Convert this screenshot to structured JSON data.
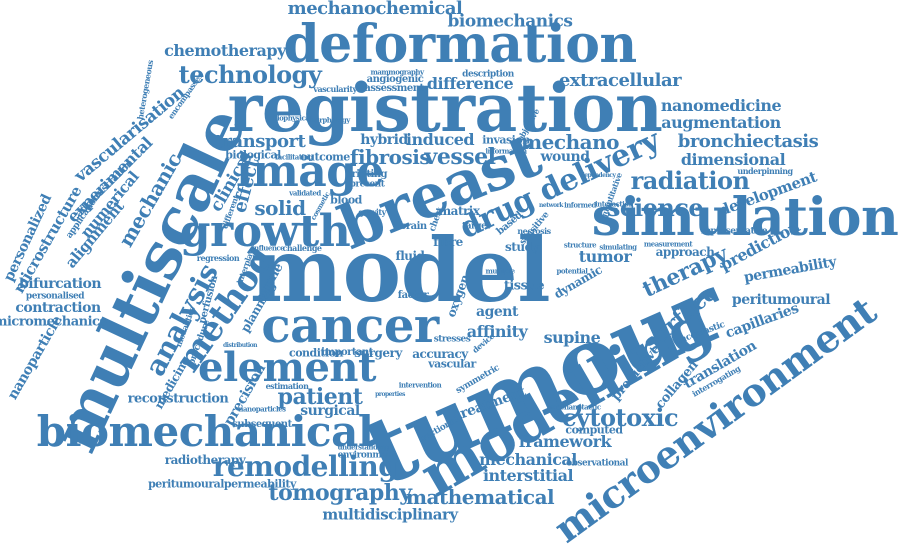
{
  "word_color": "#3f7fb5",
  "words": {
    "tumour": "tumour",
    "model": "model",
    "registration": "registration",
    "multiscale": "multiscale",
    "breast": "breast",
    "modelling": "modelling",
    "simulation": "simulation",
    "deformation": "deformation",
    "cancer": "cancer",
    "biomechanical": "biomechanical",
    "microenvironment": "microenvironment",
    "image": "image",
    "growth": "growth",
    "element": "element",
    "drug_delivery": "drug delivery",
    "method": "method",
    "analysis": "analysis",
    "remodelling": "remodelling",
    "radiation": "radiation",
    "science": "science",
    "tomography": "tomography",
    "mathematical": "mathematical",
    "cytotoxic": "cytotoxic",
    "technology": "technology",
    "therapy": "therapy",
    "surface": "surface",
    "patient": "patient",
    "vessel": "vessel",
    "fibrosis": "fibrosis",
    "mechano": "mechano",
    "transport": "transport",
    "induced": "induced",
    "solid": "solid",
    "effect": "effect",
    "clinical": "clinical",
    "mechanic": "mechanic",
    "mechanochemical": "mechanochemical",
    "biomechanics": "biomechanics",
    "chemotherapy": "chemotherapy",
    "difference": "difference",
    "extracellular": "extracellular",
    "nanomedicine": "nanomedicine",
    "augmentation": "augmentation",
    "bronchiectasis": "bronchiectasis",
    "dimensional": "dimensional",
    "development": "development",
    "prediction": "prediction",
    "permeability": "permeability",
    "peritumoural": "peritumoural",
    "capillaries": "capillaries",
    "translation": "translation",
    "collagen": "collagen",
    "predictive": "predictive",
    "supine": "supine",
    "framework": "framework",
    "mechanical": "mechanical",
    "interstitial": "interstitial",
    "multidisciplinary": "multidisciplinary",
    "radiotherapy": "radiotherapy",
    "peritumouralpermeability": "peritumouralpermeability",
    "reconstruction": "reconstruction",
    "precision": "precision",
    "surgical": "surgical",
    "treatment": "treatment",
    "vascularisation": "vascularisation",
    "experimental": "experimental",
    "numerical": "numerical",
    "alignment": "alignment",
    "microstructure": "microstructure",
    "personalized": "personalized",
    "bifurcation": "bifurcation",
    "contraction": "contraction",
    "micromechanics": "micromechanics",
    "nanoparticle": "nanoparticle",
    "medicine": "medicine",
    "affinity": "affinity",
    "agent": "agent",
    "tissue": "tissue",
    "tumor": "tumor",
    "oxygen": "oxygen",
    "accuracy": "accuracy",
    "wound": "wound",
    "matrix": "matrix",
    "fibre": "fibre",
    "surgery": "surgery",
    "biological": "biological",
    "outcome": "outcome",
    "hybrid": "hybrid",
    "invasion": "invasion",
    "approach": "approach",
    "dynamic": "dynamic",
    "study": "study",
    "fluid": "fluid",
    "blood": "blood",
    "condition": "condition",
    "important": "important",
    "vascular": "vascular",
    "personalised": "personalised",
    "administration": "administration",
    "applications": "applications",
    "angiogenic": "angiogenic",
    "assessment": "assessment",
    "description": "description",
    "vascularity": "vascularity",
    "mammography": "mammography",
    "computed": "computed",
    "subsequent": "subsequent",
    "environment": "environment",
    "observational": "observational",
    "representative": "representative",
    "printing": "printing",
    "present": "present",
    "factor": "factor",
    "brain": "brain",
    "target": "target",
    "stresses": "stresses",
    "perfusion": "perfusion",
    "procedure": "procedure",
    "estimation": "estimation",
    "sectional": "sectional",
    "interrogating": "interrogating",
    "symmetric": "symmetric",
    "sensitive": "sensitive",
    "based": "based",
    "necrosis": "necrosis",
    "quantitative": "quantitative",
    "underpinning": "underpinning",
    "measurement": "measurement",
    "oncoplastic": "oncoplastic",
    "planning": "planning",
    "prone": "prone",
    "modalities": "modalities",
    "encompasses": "encompasses",
    "heterogeneous": "heterogeneous",
    "biophysical": "biophysical",
    "morphology": "morphology",
    "facilitating": "facilitating",
    "regression": "regression",
    "interplay": "interplay",
    "challenge": "challenge",
    "influence": "influence",
    "understanding": "understanding",
    "mechanotactic": "mechanotactic",
    "objective": "objective",
    "information": "information",
    "interaction": "interaction",
    "simulating": "simulating",
    "structure": "structure",
    "potential": "potential",
    "multiple": "multiple",
    "validated": "validated",
    "cosmetic": "cosmetic",
    "gravity": "gravity",
    "chest": "chest",
    "device": "device",
    "nanoparticles": "nanoparticles",
    "different": "different",
    "distribution": "distribution",
    "intervention": "intervention",
    "properties": "properties",
    "network": "network",
    "informed": "informed",
    "dependency": "dependency"
  }
}
